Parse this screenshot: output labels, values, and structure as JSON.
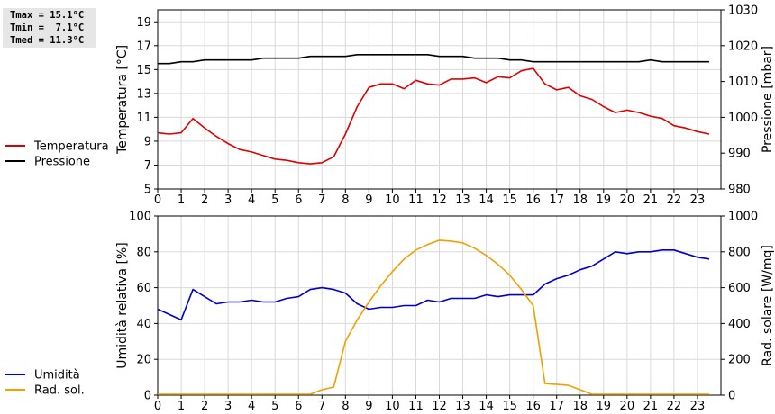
{
  "stats": {
    "tmax": "Tmax = 15.1°C",
    "tmin": "Tmin =  7.1°C",
    "tmed": "Tmed = 11.3°C"
  },
  "chart_data": [
    {
      "type": "line",
      "xlabel": "",
      "xlim": [
        0,
        24
      ],
      "xticks": [
        0,
        1,
        2,
        3,
        4,
        5,
        6,
        7,
        8,
        9,
        10,
        11,
        12,
        13,
        14,
        15,
        16,
        17,
        18,
        19,
        20,
        21,
        22,
        23
      ],
      "grid": true,
      "legend": "left",
      "left_axis": {
        "label": "Temperatura [°C]",
        "ylim": [
          5,
          20
        ],
        "ticks": [
          5,
          7,
          9,
          11,
          13,
          15,
          17,
          19
        ]
      },
      "right_axis": {
        "label": "Pressione [mbar]",
        "ylim": [
          980,
          1030
        ],
        "ticks": [
          980,
          990,
          1000,
          1010,
          1020,
          1030
        ]
      },
      "series": [
        {
          "name": "Temperatura",
          "axis": "left",
          "color": "#dd0000",
          "x": [
            0,
            0.5,
            1,
            1.5,
            2,
            2.5,
            3,
            3.5,
            4,
            4.5,
            5,
            5.5,
            6,
            6.5,
            7,
            7.5,
            8,
            8.5,
            9,
            9.5,
            10,
            10.5,
            11,
            11.5,
            12,
            12.5,
            13,
            13.5,
            14,
            14.5,
            15,
            15.5,
            16,
            16.5,
            17,
            17.5,
            18,
            18.5,
            19,
            19.5,
            20,
            20.5,
            21,
            21.5,
            22,
            22.5,
            23,
            23.5
          ],
          "y": [
            9.7,
            9.6,
            9.7,
            10.9,
            10.1,
            9.4,
            8.8,
            8.3,
            8.1,
            7.8,
            7.5,
            7.4,
            7.2,
            7.1,
            7.2,
            7.7,
            9.6,
            11.9,
            13.5,
            13.8,
            13.8,
            13.4,
            14.1,
            13.8,
            13.7,
            14.2,
            14.2,
            14.3,
            13.9,
            14.4,
            14.3,
            14.9,
            15.1,
            13.8,
            13.3,
            13.5,
            12.8,
            12.5,
            11.9,
            11.4,
            11.6,
            11.4,
            11.1,
            10.9,
            10.3,
            10.1,
            9.8,
            9.6
          ]
        },
        {
          "name": "Pressione",
          "axis": "right",
          "color": "#000000",
          "x": [
            0,
            0.5,
            1,
            1.5,
            2,
            2.5,
            3,
            3.5,
            4,
            4.5,
            5,
            5.5,
            6,
            6.5,
            7,
            7.5,
            8,
            8.5,
            9,
            9.5,
            10,
            10.5,
            11,
            11.5,
            12,
            12.5,
            13,
            13.5,
            14,
            14.5,
            15,
            15.5,
            16,
            16.5,
            17,
            17.5,
            18,
            18.5,
            19,
            19.5,
            20,
            20.5,
            21,
            21.5,
            22,
            22.5,
            23,
            23.5
          ],
          "y": [
            1015,
            1015,
            1015.5,
            1015.5,
            1016,
            1016,
            1016,
            1016,
            1016,
            1016.5,
            1016.5,
            1016.5,
            1016.5,
            1017,
            1017,
            1017,
            1017,
            1017.5,
            1017.5,
            1017.5,
            1017.5,
            1017.5,
            1017.5,
            1017.5,
            1017,
            1017,
            1017,
            1016.5,
            1016.5,
            1016.5,
            1016,
            1016,
            1015.5,
            1015.5,
            1015.5,
            1015.5,
            1015.5,
            1015.5,
            1015.5,
            1015.5,
            1015.5,
            1015.5,
            1016,
            1015.5,
            1015.5,
            1015.5,
            1015.5,
            1015.5
          ]
        }
      ]
    },
    {
      "type": "line",
      "xlabel": "",
      "xlim": [
        0,
        24
      ],
      "xticks": [
        0,
        1,
        2,
        3,
        4,
        5,
        6,
        7,
        8,
        9,
        10,
        11,
        12,
        13,
        14,
        15,
        16,
        17,
        18,
        19,
        20,
        21,
        22,
        23
      ],
      "grid": true,
      "legend": "left",
      "left_axis": {
        "label": "Umidità relativa [%]",
        "ylim": [
          0,
          100
        ],
        "ticks": [
          0,
          20,
          40,
          60,
          80,
          100
        ]
      },
      "right_axis": {
        "label": "Rad. solare [W/mq]",
        "ylim": [
          0,
          1000
        ],
        "ticks": [
          0,
          200,
          400,
          600,
          800,
          1000
        ]
      },
      "series": [
        {
          "name": "Umidità",
          "axis": "left",
          "color": "#0000cc",
          "x": [
            0,
            0.5,
            1,
            1.5,
            2,
            2.5,
            3,
            3.5,
            4,
            4.5,
            5,
            5.5,
            6,
            6.5,
            7,
            7.5,
            8,
            8.5,
            9,
            9.5,
            10,
            10.5,
            11,
            11.5,
            12,
            12.5,
            13,
            13.5,
            14,
            14.5,
            15,
            15.5,
            16,
            16.5,
            17,
            17.5,
            18,
            18.5,
            19,
            19.5,
            20,
            20.5,
            21,
            21.5,
            22,
            22.5,
            23,
            23.5
          ],
          "y": [
            48,
            45,
            42,
            59,
            55,
            51,
            52,
            52,
            53,
            52,
            52,
            54,
            55,
            59,
            60,
            59,
            57,
            51,
            48,
            49,
            49,
            50,
            50,
            53,
            52,
            54,
            54,
            54,
            56,
            55,
            56,
            56,
            56,
            62,
            65,
            67,
            70,
            72,
            76,
            80,
            79,
            80,
            80,
            81,
            81,
            79,
            77,
            76
          ]
        },
        {
          "name": "Rad. sol.",
          "axis": "right",
          "color": "#f0a000",
          "x": [
            0,
            0.5,
            1,
            1.5,
            2,
            2.5,
            3,
            3.5,
            4,
            4.5,
            5,
            5.5,
            6,
            6.5,
            7,
            7.5,
            8,
            8.5,
            9,
            9.5,
            10,
            10.5,
            11,
            11.5,
            12,
            12.5,
            13,
            13.5,
            14,
            14.5,
            15,
            15.5,
            16,
            16.5,
            17,
            17.5,
            18,
            18.5,
            19,
            19.5,
            20,
            20.5,
            21,
            21.5,
            22,
            22.5,
            23,
            23.5
          ],
          "y": [
            5,
            5,
            5,
            5,
            5,
            5,
            5,
            5,
            5,
            5,
            5,
            5,
            5,
            5,
            30,
            45,
            300,
            420,
            520,
            610,
            690,
            760,
            810,
            840,
            865,
            860,
            850,
            820,
            780,
            730,
            670,
            590,
            500,
            65,
            60,
            55,
            30,
            5,
            5,
            5,
            5,
            5,
            5,
            5,
            5,
            5,
            5,
            5
          ]
        }
      ]
    }
  ]
}
